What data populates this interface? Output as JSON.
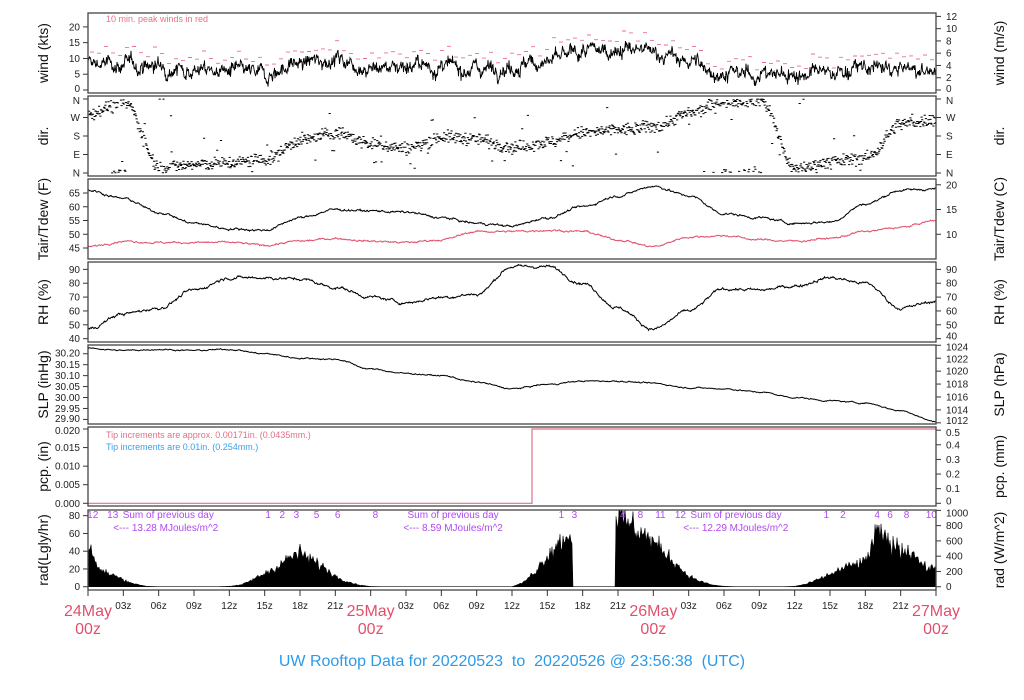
{
  "title": "UW Rooftop Data for 20220523  to  20220526 @ 23:56:38  (UTC)",
  "colors": {
    "peak": "#e8708a",
    "dew": "#e0506b",
    "date": "#e0506b",
    "title": "#2b9be8",
    "rad_note": "#b048f2",
    "tip_blue": "#3aa0e8",
    "tip_red": "#e07088"
  },
  "x_axis": {
    "range_hours": [
      0,
      72
    ],
    "ticks": [
      {
        "hour": 0,
        "label": "24May",
        "sub": "00z",
        "major": true
      },
      {
        "hour": 3,
        "label": "03z"
      },
      {
        "hour": 6,
        "label": "06z"
      },
      {
        "hour": 9,
        "label": "09z"
      },
      {
        "hour": 12,
        "label": "12z"
      },
      {
        "hour": 15,
        "label": "15z"
      },
      {
        "hour": 18,
        "label": "18z"
      },
      {
        "hour": 21,
        "label": "21z"
      },
      {
        "hour": 24,
        "label": "25May",
        "sub": "00z",
        "major": true
      },
      {
        "hour": 27,
        "label": "03z"
      },
      {
        "hour": 30,
        "label": "06z"
      },
      {
        "hour": 33,
        "label": "09z"
      },
      {
        "hour": 36,
        "label": "12z"
      },
      {
        "hour": 39,
        "label": "15z"
      },
      {
        "hour": 42,
        "label": "18z"
      },
      {
        "hour": 45,
        "label": "21z"
      },
      {
        "hour": 48,
        "label": "26May",
        "sub": "00z",
        "major": true
      },
      {
        "hour": 51,
        "label": "03z"
      },
      {
        "hour": 54,
        "label": "06z"
      },
      {
        "hour": 57,
        "label": "09z"
      },
      {
        "hour": 60,
        "label": "12z"
      },
      {
        "hour": 63,
        "label": "15z"
      },
      {
        "hour": 66,
        "label": "18z"
      },
      {
        "hour": 69,
        "label": "21z"
      },
      {
        "hour": 72,
        "label": "27May",
        "sub": "00z",
        "major": true
      }
    ]
  },
  "chart_data": [
    {
      "id": "wind",
      "type": "line",
      "ylabel": "wind (kts)",
      "ylim": [
        -0.95,
        24.4
      ],
      "left_ticks": [
        {
          "v": 0,
          "t": "0"
        },
        {
          "v": 5,
          "t": "5"
        },
        {
          "v": 10,
          "t": "10"
        },
        {
          "v": 15,
          "t": "15"
        },
        {
          "v": 20,
          "t": "20"
        }
      ],
      "right_axis": {
        "label": "wind (m/s)",
        "scale": 1.9438,
        "offset": 0,
        "ticks": [
          {
            "v": 0,
            "t": "0"
          },
          {
            "v": 2,
            "t": "2"
          },
          {
            "v": 4,
            "t": "4"
          },
          {
            "v": 6,
            "t": "6"
          },
          {
            "v": 8,
            "t": "8"
          },
          {
            "v": 10,
            "t": "10"
          },
          {
            "v": 12,
            "t": "12"
          }
        ]
      },
      "annotation": "10 min. peak winds in red",
      "step_hours": 3,
      "series": [
        {
          "name": "wind speed",
          "color": "#000000",
          "noise": 1.8,
          "values": [
            8.5,
            8,
            7.5,
            6.5,
            6,
            5,
            8.5,
            10,
            7,
            8,
            7,
            7,
            7.5,
            9,
            12,
            13,
            12,
            9,
            5,
            5,
            5,
            5.5,
            7,
            6.5,
            5.5
          ]
        },
        {
          "name": "10 min. peak wind",
          "color": "#e8708a",
          "style": "dash",
          "offset_from": "wind speed",
          "offset": 4.5
        }
      ]
    },
    {
      "id": "dir",
      "type": "scatter",
      "ylabel": "dir.",
      "ylim": [
        -14.6,
        374.6
      ],
      "left_ticks": [
        {
          "v": 0,
          "t": "N"
        },
        {
          "v": 90,
          "t": "E"
        },
        {
          "v": 180,
          "t": "S"
        },
        {
          "v": 270,
          "t": "W"
        },
        {
          "v": 360,
          "t": "N"
        }
      ],
      "right_axis": {
        "label": "dir.",
        "scale": 1,
        "offset": 0,
        "ticks": [
          {
            "v": 0,
            "t": "N"
          },
          {
            "v": 90,
            "t": "E"
          },
          {
            "v": 180,
            "t": "S"
          },
          {
            "v": 270,
            "t": "W"
          },
          {
            "v": 360,
            "t": "N"
          }
        ]
      },
      "step_hours": 3,
      "series": [
        {
          "name": "wind direction (deg)",
          "color": "#000000",
          "noise": 22,
          "values": [
            290,
            350,
            30,
            40,
            50,
            65,
            160,
            195,
            140,
            120,
            175,
            165,
            125,
            150,
            195,
            210,
            225,
            290,
            350,
            355,
            20,
            55,
            75,
            240,
            260
          ]
        }
      ]
    },
    {
      "id": "temp",
      "type": "line",
      "ylabel": "Tair/Tdew (F)",
      "ylim": [
        41,
        70.1
      ],
      "left_ticks": [
        {
          "v": 45,
          "t": "45"
        },
        {
          "v": 50,
          "t": "50"
        },
        {
          "v": 55,
          "t": "55"
        },
        {
          "v": 60,
          "t": "60"
        },
        {
          "v": 65,
          "t": "65"
        }
      ],
      "right_axis": {
        "label": "Tair/Tdew (C)",
        "scale": 1.8,
        "offset": 32,
        "ticks": [
          {
            "v": 10,
            "t": "10"
          },
          {
            "v": 15,
            "t": "15"
          },
          {
            "v": 20,
            "t": "20"
          }
        ]
      },
      "step_hours": 3,
      "series": [
        {
          "name": "Tair",
          "color": "#000000",
          "noise": 0.35,
          "values": [
            66,
            63,
            58,
            54,
            52,
            51.5,
            56,
            59,
            58.5,
            58,
            56,
            54,
            53,
            56,
            60,
            64,
            67.5,
            64,
            57.5,
            56,
            54,
            54.5,
            61,
            66,
            66.5
          ]
        },
        {
          "name": "Tdew",
          "color": "#e0506b",
          "noise": 0.3,
          "values": [
            45.5,
            47.5,
            47,
            47,
            47,
            46,
            47.5,
            48.5,
            47.5,
            47,
            48,
            51,
            51,
            51.5,
            51,
            48,
            45.5,
            49,
            49.5,
            48,
            47.5,
            48.5,
            51,
            52.5,
            55
          ]
        }
      ]
    },
    {
      "id": "rh",
      "type": "line",
      "ylabel": "RH (%)",
      "ylim": [
        37.6,
        95.3
      ],
      "left_ticks": [
        {
          "v": 40,
          "t": "40"
        },
        {
          "v": 50,
          "t": "50"
        },
        {
          "v": 60,
          "t": "60"
        },
        {
          "v": 70,
          "t": "70"
        },
        {
          "v": 80,
          "t": "80"
        },
        {
          "v": 90,
          "t": "90"
        }
      ],
      "right_axis": {
        "label": "RH (%)",
        "scale": 1,
        "offset": 0,
        "ticks": [
          {
            "v": 40,
            "t": "40"
          },
          {
            "v": 50,
            "t": "50"
          },
          {
            "v": 60,
            "t": "60"
          },
          {
            "v": 70,
            "t": "70"
          },
          {
            "v": 80,
            "t": "80"
          },
          {
            "v": 90,
            "t": "90"
          }
        ]
      },
      "step_hours": 3,
      "series": [
        {
          "name": "RH",
          "color": "#000000",
          "noise": 0.9,
          "values": [
            47,
            58,
            62,
            75,
            84,
            84,
            83,
            77,
            70,
            66,
            70,
            72,
            92,
            92,
            80,
            62,
            47,
            60,
            76,
            75,
            78,
            84,
            80,
            62,
            67
          ]
        }
      ]
    },
    {
      "id": "slp",
      "type": "line",
      "ylabel": "SLP (inHg)",
      "ylim": [
        29.879,
        30.24
      ],
      "left_ticks": [
        {
          "v": 29.9,
          "t": "29.90"
        },
        {
          "v": 29.95,
          "t": "29.95"
        },
        {
          "v": 30.0,
          "t": "30.00"
        },
        {
          "v": 30.05,
          "t": "30.05"
        },
        {
          "v": 30.1,
          "t": "30.10"
        },
        {
          "v": 30.15,
          "t": "30.15"
        },
        {
          "v": 30.2,
          "t": "30.20"
        }
      ],
      "right_axis": {
        "label": "SLP (hPa)",
        "scale": 0.02953,
        "offset": 0,
        "ticks": [
          {
            "v": 1012,
            "t": "1012"
          },
          {
            "v": 1014,
            "t": "1014"
          },
          {
            "v": 1016,
            "t": "1016"
          },
          {
            "v": 1018,
            "t": "1018"
          },
          {
            "v": 1020,
            "t": "1020"
          },
          {
            "v": 1022,
            "t": "1022"
          },
          {
            "v": 1024,
            "t": "1024"
          }
        ]
      },
      "step_hours": 3,
      "series": [
        {
          "name": "SLP",
          "color": "#000000",
          "noise": 0.0025,
          "values": [
            30.225,
            30.215,
            30.22,
            30.215,
            30.22,
            30.2,
            30.18,
            30.175,
            30.13,
            30.11,
            30.1,
            30.07,
            30.04,
            30.06,
            30.075,
            30.075,
            30.065,
            30.045,
            30.04,
            30.025,
            30.0,
            29.985,
            29.975,
            29.94,
            29.89
          ]
        }
      ]
    },
    {
      "id": "pcp",
      "type": "line",
      "ylabel": "pcp. (in)",
      "ylim": [
        -0.00073,
        0.02054
      ],
      "left_ticks": [
        {
          "v": 0,
          "t": "0.000"
        },
        {
          "v": 0.005,
          "t": "0.005"
        },
        {
          "v": 0.01,
          "t": "0.010"
        },
        {
          "v": 0.015,
          "t": "0.015"
        },
        {
          "v": 0.02,
          "t": "0.020"
        }
      ],
      "right_axis": {
        "label": "pcp. (mm)",
        "scale": 0.03937,
        "offset": 0,
        "ticks": [
          {
            "v": 0,
            "t": "0"
          },
          {
            "v": 0.1,
            "t": "0.1"
          },
          {
            "v": 0.2,
            "t": "0.2"
          },
          {
            "v": 0.3,
            "t": "0.3"
          },
          {
            "v": 0.4,
            "t": "0.4"
          },
          {
            "v": 0.5,
            "t": "0.5"
          }
        ]
      },
      "notes": [
        {
          "text": "Tip increments are approx. 0.00171in. (0.0435mm.)",
          "color": "#e07088"
        },
        {
          "text": "Tip increments are 0.01in. (0.254mm.)",
          "color": "#3aa0e8"
        }
      ],
      "series": [
        {
          "name": "accumulated precipitation",
          "color": "#e07088",
          "points": [
            [
              0,
              0
            ],
            [
              37.7,
              0
            ],
            [
              37.7,
              0.02
            ],
            [
              72,
              0.02
            ]
          ]
        }
      ]
    },
    {
      "id": "rad",
      "type": "area",
      "ylabel": "rad(Lgly/hr)",
      "ylim": [
        -3.7,
        86.4
      ],
      "left_ticks": [
        {
          "v": 0,
          "t": "0"
        },
        {
          "v": 20,
          "t": "20"
        },
        {
          "v": 40,
          "t": "40"
        },
        {
          "v": 60,
          "t": "60"
        },
        {
          "v": 80,
          "t": "80"
        }
      ],
      "right_axis": {
        "label": "rad (W/m^2)",
        "scale": 0.086,
        "offset": 0,
        "ticks": [
          {
            "v": 0,
            "t": "0"
          },
          {
            "v": 200,
            "t": "200"
          },
          {
            "v": 400,
            "t": "400"
          },
          {
            "v": 600,
            "t": "600"
          },
          {
            "v": 800,
            "t": "800"
          },
          {
            "v": 1000,
            "t": "1000"
          }
        ]
      },
      "step_hours": 1,
      "series": [
        {
          "name": "solar radiation",
          "color": "#000000",
          "noise": 0.18,
          "values": [
            48,
            18,
            14,
            8,
            3,
            0.5,
            0,
            0,
            0,
            0,
            0,
            0,
            0.5,
            2,
            8,
            15,
            22,
            32,
            38,
            30,
            22,
            12,
            6,
            2,
            0.3,
            0,
            0,
            0,
            0,
            0,
            0,
            0,
            0,
            0,
            0,
            0,
            0,
            5,
            18,
            35,
            50,
            60,
            0,
            0,
            0,
            78,
            70,
            62,
            50,
            38,
            25,
            12,
            6,
            2,
            0.5,
            0,
            0,
            0,
            0,
            0,
            0.5,
            3,
            8,
            14,
            20,
            25,
            28,
            62,
            50,
            42,
            40,
            22,
            20
          ]
        }
      ],
      "hour_marks": [
        {
          "hour": 0.4,
          "text": "12"
        },
        {
          "hour": 2.1,
          "text": "13"
        },
        {
          "hour": 15.3,
          "text": "1"
        },
        {
          "hour": 16.5,
          "text": "2"
        },
        {
          "hour": 17.7,
          "text": "3"
        },
        {
          "hour": 19.4,
          "text": "5"
        },
        {
          "hour": 21.2,
          "text": "6"
        },
        {
          "hour": 24.4,
          "text": "8"
        },
        {
          "hour": 40.2,
          "text": "1"
        },
        {
          "hour": 41.3,
          "text": "3"
        },
        {
          "hour": 45.4,
          "text": "4"
        },
        {
          "hour": 46.9,
          "text": "8"
        },
        {
          "hour": 48.6,
          "text": "11"
        },
        {
          "hour": 50.3,
          "text": "12"
        },
        {
          "hour": 62.7,
          "text": "1"
        },
        {
          "hour": 64.1,
          "text": "2"
        },
        {
          "hour": 67.0,
          "text": "4"
        },
        {
          "hour": 68.1,
          "text": "6"
        },
        {
          "hour": 69.5,
          "text": "8"
        },
        {
          "hour": 71.6,
          "text": "10"
        }
      ],
      "daily_sums": [
        {
          "hour": 6.6,
          "line1": "Sum of previous day",
          "line2": "<--- 13.28 MJoules/m^2"
        },
        {
          "hour": 31.0,
          "line1": "Sum of previous day",
          "line2": "<--- 8.59 MJoules/m^2"
        },
        {
          "hour": 55.0,
          "line1": "Sum of previous day",
          "line2": "<--- 12.29 MJoules/m^2"
        }
      ]
    }
  ]
}
